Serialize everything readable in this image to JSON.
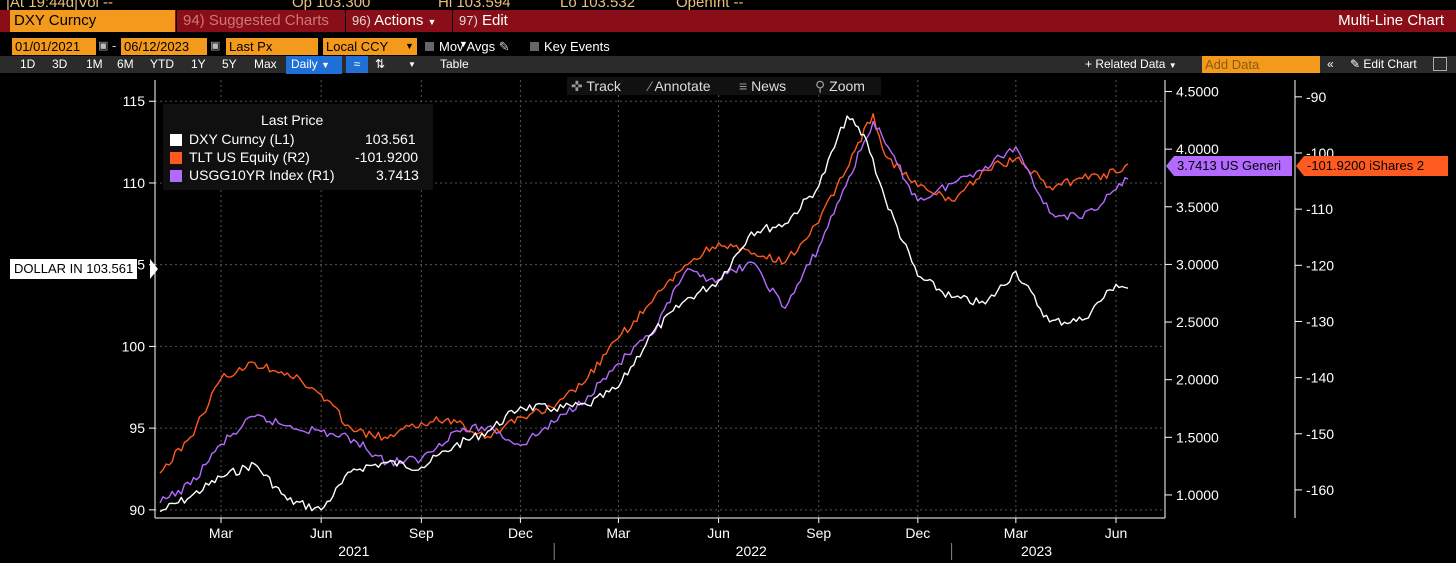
{
  "top_cut": {
    "at": "|At 19:44d|Vol --",
    "op": "Op 103.300",
    "hi": "Hi 103.594",
    "lo": "Lo 103.532",
    "openint": "OpenInt --"
  },
  "toolbar": {
    "ticker": "DXY Curncy",
    "suggested_charts": "94) Suggested Charts",
    "actions_num": "96)",
    "actions": "Actions",
    "edit_num": "97)",
    "edit": "Edit",
    "chart_title": "Multi-Line Chart"
  },
  "controls": {
    "start_date": "01/01/2021",
    "end_date": "06/12/2023",
    "price_type": "Last Px",
    "currency": "Local CCY",
    "mov_avgs": "Mov Avgs",
    "key_events": "Key Events"
  },
  "ranges": {
    "items": [
      "1D",
      "3D",
      "1M",
      "6M",
      "YTD",
      "1Y",
      "5Y",
      "Max"
    ],
    "frequency": "Daily",
    "table": "Table",
    "related_data": "Related Data",
    "add_data_placeholder": "Add Data",
    "edit_chart": "Edit Chart"
  },
  "chart_tools": {
    "track": "Track",
    "annotate": "Annotate",
    "news": "News",
    "zoom": "Zoom"
  },
  "legend": {
    "header": "Last Price",
    "rows": [
      {
        "label": "DXY Curncy  (L1)",
        "value": "103.561",
        "color": "#ffffff"
      },
      {
        "label": "TLT US Equity  (R2)",
        "value": "-101.9200",
        "color": "#ff5a1f"
      },
      {
        "label": "USGG10YR Index  (R1)",
        "value": "3.7413",
        "color": "#b36bff"
      }
    ]
  },
  "tags": {
    "left": "DOLLAR IN 103.561",
    "r1": "3.7413 US Generi",
    "r2": "-101.9200 iShares 2"
  },
  "chart_data": {
    "type": "line",
    "x_months": [
      "Mar",
      "Jun",
      "Sep",
      "Dec",
      "Mar",
      "Jun",
      "Sep",
      "Dec",
      "Mar",
      "Jun"
    ],
    "x_years": [
      "2021",
      "2022",
      "2023"
    ],
    "left_axis": {
      "ticks": [
        "115",
        "110",
        "105",
        "100",
        "95",
        "90"
      ],
      "ylim": [
        89.5,
        116.3
      ]
    },
    "right1_axis": {
      "ticks": [
        "4.5000",
        "4.0000",
        "3.5000",
        "3.0000",
        "2.5000",
        "2.0000",
        "1.5000",
        "1.0000"
      ],
      "ylim": [
        0.8,
        4.6
      ]
    },
    "right2_axis": {
      "ticks": [
        "-90",
        "-100",
        "-110",
        "-120",
        "-130",
        "-140",
        "-150",
        "-160"
      ],
      "ylim": [
        -165,
        -87
      ]
    },
    "series": [
      {
        "name": "DXY Curncy (L1)",
        "axis": "L1",
        "color": "#ffffff",
        "x": [
          "2021-01-04",
          "2021-02-01",
          "2021-03-01",
          "2021-04-01",
          "2021-05-01",
          "2021-06-01",
          "2021-07-01",
          "2021-08-01",
          "2021-09-01",
          "2021-10-01",
          "2021-11-01",
          "2021-12-01",
          "2022-01-01",
          "2022-02-01",
          "2022-03-01",
          "2022-04-01",
          "2022-05-01",
          "2022-06-01",
          "2022-07-01",
          "2022-08-01",
          "2022-09-01",
          "2022-09-27",
          "2022-10-15",
          "2022-11-01",
          "2022-12-01",
          "2023-01-01",
          "2023-02-01",
          "2023-03-01",
          "2023-04-01",
          "2023-05-01",
          "2023-06-01",
          "2023-06-12"
        ],
        "y": [
          89.9,
          90.8,
          92.0,
          92.8,
          90.6,
          90.0,
          92.5,
          92.9,
          92.6,
          93.9,
          94.8,
          96.3,
          96.2,
          96.4,
          97.5,
          100.8,
          102.8,
          104.0,
          107.0,
          107.5,
          109.8,
          114.1,
          112.6,
          109.0,
          104.3,
          103.0,
          102.6,
          104.6,
          101.5,
          101.6,
          103.8,
          103.561
        ]
      },
      {
        "name": "USGG10YR Index (R1)",
        "axis": "R1",
        "color": "#b36bff",
        "x": [
          "2021-01-04",
          "2021-02-01",
          "2021-03-01",
          "2021-04-01",
          "2021-05-01",
          "2021-06-01",
          "2021-07-01",
          "2021-08-01",
          "2021-09-01",
          "2021-10-01",
          "2021-11-01",
          "2021-12-01",
          "2022-01-01",
          "2022-02-01",
          "2022-03-01",
          "2022-04-01",
          "2022-05-01",
          "2022-06-01",
          "2022-07-01",
          "2022-08-01",
          "2022-09-01",
          "2022-10-21",
          "2022-11-01",
          "2022-12-01",
          "2023-01-01",
          "2023-02-01",
          "2023-03-01",
          "2023-04-01",
          "2023-05-01",
          "2023-06-01",
          "2023-06-12"
        ],
        "y": [
          0.93,
          1.09,
          1.44,
          1.68,
          1.6,
          1.55,
          1.48,
          1.28,
          1.31,
          1.55,
          1.59,
          1.43,
          1.63,
          1.86,
          2.14,
          2.39,
          2.93,
          2.87,
          3.02,
          2.62,
          3.15,
          4.24,
          4.05,
          3.55,
          3.7,
          3.85,
          4.02,
          3.45,
          3.4,
          3.65,
          3.7413
        ]
      },
      {
        "name": "TLT US Equity (R2)",
        "axis": "R2",
        "color": "#ff5a1f",
        "x": [
          "2021-01-04",
          "2021-02-01",
          "2021-03-01",
          "2021-04-01",
          "2021-05-01",
          "2021-06-01",
          "2021-07-01",
          "2021-08-01",
          "2021-09-01",
          "2021-10-01",
          "2021-11-01",
          "2021-12-01",
          "2022-01-01",
          "2022-02-01",
          "2022-03-01",
          "2022-04-01",
          "2022-05-01",
          "2022-06-01",
          "2022-07-01",
          "2022-08-01",
          "2022-09-01",
          "2022-10-21",
          "2022-11-01",
          "2022-12-01",
          "2023-01-01",
          "2023-02-01",
          "2023-03-01",
          "2023-04-01",
          "2023-05-01",
          "2023-06-01",
          "2023-06-12"
        ],
        "y": [
          -157.0,
          -150.6,
          -140.2,
          -137.4,
          -139.2,
          -143.0,
          -149.6,
          -150.8,
          -148.0,
          -147.5,
          -150.5,
          -147.0,
          -145.4,
          -140.0,
          -133.0,
          -126.5,
          -120.0,
          -116.0,
          -118.0,
          -119.5,
          -112.4,
          -93.0,
          -100.5,
          -106.0,
          -108.5,
          -103.0,
          -101.0,
          -106.0,
          -104.5,
          -103.5,
          -101.92
        ]
      }
    ]
  }
}
